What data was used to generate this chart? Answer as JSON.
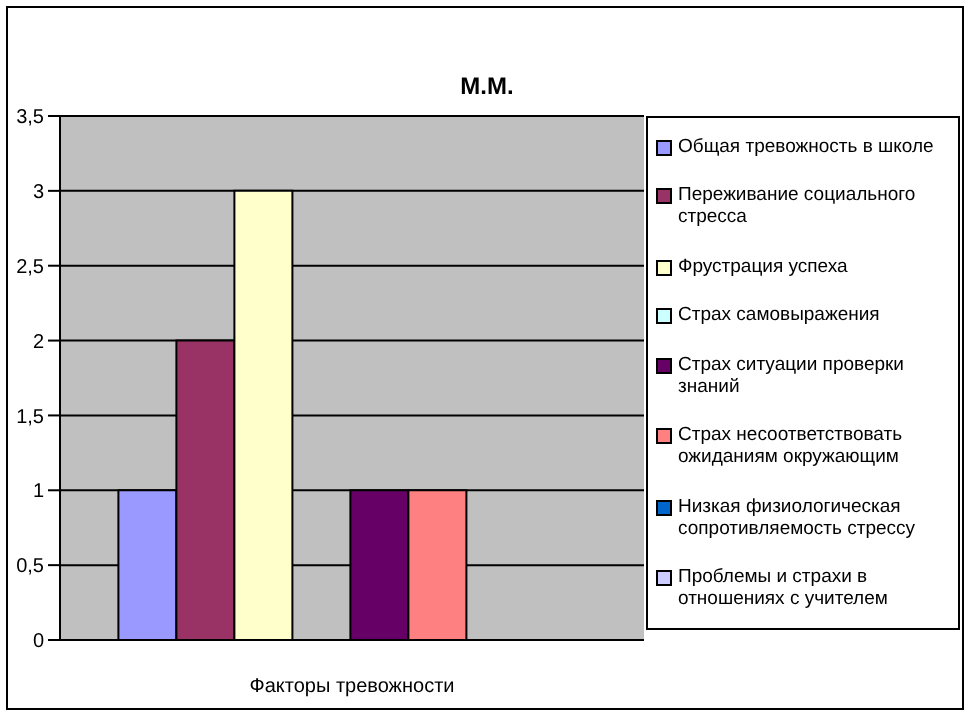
{
  "chart_data": {
    "type": "bar",
    "title": "М.М.",
    "xlabel": "Факторы тревожности",
    "categories": [
      null
    ],
    "series": [
      {
        "name": "Общая тревожность в школе",
        "color": "#9999ff",
        "values": [
          1
        ]
      },
      {
        "name": "Переживание социального стресса",
        "color": "#993366",
        "values": [
          2
        ]
      },
      {
        "name": "Фрустрация успеха",
        "color": "#ffffcc",
        "values": [
          3
        ]
      },
      {
        "name": "Страх самовыражения",
        "color": "#ccffff",
        "values": [
          0
        ]
      },
      {
        "name": "Страх ситуации проверки знаний",
        "color": "#660066",
        "values": [
          1
        ]
      },
      {
        "name": "Страх несоответствовать ожиданиям окружающим",
        "color": "#ff8080",
        "values": [
          1
        ]
      },
      {
        "name": "Низкая физиологическая сопротивляемость стрессу",
        "color": "#0066cc",
        "values": [
          0
        ]
      },
      {
        "name": "Проблемы и страхи в отношениях с учителем",
        "color": "#ccccff",
        "values": [
          0
        ]
      }
    ],
    "ylim": [
      0,
      3.5
    ],
    "yticks": [
      0,
      {
        "value": 0.5,
        "label": "0,5"
      },
      1,
      {
        "value": 1.5,
        "label": "1,5"
      },
      2,
      {
        "value": 2.5,
        "label": "2,5"
      },
      3,
      {
        "value": 3.5,
        "label": "3,5"
      }
    ],
    "grid": "y",
    "legend": "right"
  }
}
